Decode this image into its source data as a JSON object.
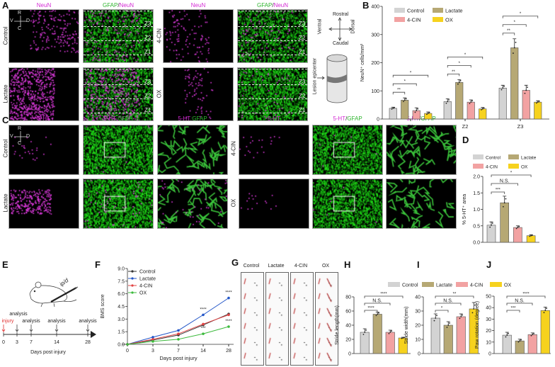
{
  "panel_labels": [
    "A",
    "B",
    "C",
    "D",
    "E",
    "F",
    "G",
    "H",
    "I",
    "J"
  ],
  "colors": {
    "control": "#d3d3d3",
    "lactate": "#b6a874",
    "cin": "#f2a2a2",
    "ox": "#f6d21e",
    "neun": "#d42ad4",
    "gfap": "#2fb52f",
    "line_control": "#333333",
    "line_lactate": "#2356c8",
    "line_cin": "#e24444",
    "line_ox": "#3cba3c"
  },
  "panel_a": {
    "col_titles": [
      {
        "parts": [
          {
            "t": "NeuN",
            "c": "mag"
          }
        ]
      },
      {
        "parts": [
          {
            "t": "GFAP",
            "c": "grn"
          },
          {
            "t": "/",
            "c": ""
          },
          {
            "t": "NeuN",
            "c": "mag"
          }
        ]
      },
      {
        "parts": [
          {
            "t": "NeuN",
            "c": "mag"
          }
        ]
      },
      {
        "parts": [
          {
            "t": "GFAP",
            "c": "grn"
          },
          {
            "t": "/",
            "c": ""
          },
          {
            "t": "NeuN",
            "c": "mag"
          }
        ]
      }
    ],
    "row_labels": [
      "Control",
      "Lactate",
      "4-CIN",
      "OX"
    ],
    "zones": [
      "Z3",
      "Z2",
      "Z1"
    ],
    "orientation": {
      "r": "R",
      "c": "C",
      "v": "V",
      "d": "D"
    },
    "diagram": {
      "rostral": "Rostral",
      "caudal": "Caudal",
      "ventral": "Ventral",
      "dorsal": "Dorsal",
      "lesion": "Lesion epicenter"
    }
  },
  "panel_c": {
    "col_titles": [
      {
        "parts": [
          {
            "t": "5-HT",
            "c": "mag"
          }
        ]
      },
      {
        "parts": [
          {
            "t": "5-HT",
            "c": "mag"
          },
          {
            "t": "/",
            "c": ""
          },
          {
            "t": "GFAP",
            "c": "grn"
          }
        ]
      },
      {
        "parts": [
          {
            "t": "5-HT",
            "c": "mag"
          },
          {
            "t": "/",
            "c": ""
          },
          {
            "t": "GFAP",
            "c": "grn"
          }
        ]
      },
      {
        "parts": [
          {
            "t": "5-HT",
            "c": "mag"
          }
        ]
      },
      {
        "parts": [
          {
            "t": "5-HT",
            "c": "mag"
          },
          {
            "t": "/",
            "c": ""
          },
          {
            "t": "GFAP",
            "c": "grn"
          }
        ]
      },
      {
        "parts": [
          {
            "t": "5-HT",
            "c": "mag"
          },
          {
            "t": "/",
            "c": ""
          },
          {
            "t": "GFAP",
            "c": "grn"
          }
        ]
      }
    ],
    "row_labels": [
      "Control",
      "Lactate",
      "4-CIN",
      "OX"
    ],
    "orientation": {
      "r": "R",
      "c": "C",
      "v": "V",
      "d": "D"
    }
  },
  "panel_e": {
    "injury": "injury",
    "analysis": "analysis",
    "route": "ip/d",
    "days": [
      "0",
      "3",
      "7",
      "14",
      "28"
    ],
    "xlabel": "Days post injury"
  },
  "panel_g": {
    "labels": [
      "Control",
      "Lactate",
      "4-CIN",
      "OX"
    ]
  },
  "legend_groups": [
    "Control",
    "Lactate",
    "4-CIN",
    "OX"
  ],
  "chart_data": [
    {
      "id": "B",
      "type": "bar",
      "ylabel": "NeuN⁺ cells/mm²",
      "ylim": [
        0,
        400
      ],
      "yticks": [
        0,
        100,
        200,
        300,
        400
      ],
      "categories": [
        "Z1",
        "Z2",
        "Z3"
      ],
      "series": [
        {
          "name": "Control",
          "values": [
            38,
            62,
            110
          ],
          "err": [
            4,
            10,
            10
          ]
        },
        {
          "name": "Lactate",
          "values": [
            67,
            130,
            253
          ],
          "err": [
            8,
            10,
            32
          ]
        },
        {
          "name": "4-CIN",
          "values": [
            30,
            60,
            102
          ],
          "err": [
            10,
            8,
            18
          ]
        },
        {
          "name": "OX",
          "values": [
            20,
            36,
            60
          ],
          "err": [
            5,
            5,
            5
          ]
        }
      ],
      "significance": [
        [
          [
            0,
            1,
            "**"
          ],
          [
            0,
            2,
            "*"
          ],
          [
            0,
            3,
            "*"
          ]
        ],
        [
          [
            0,
            1,
            "**"
          ],
          [
            0,
            2,
            "*"
          ],
          [
            0,
            3,
            "*"
          ]
        ],
        [
          [
            0,
            1,
            "**"
          ],
          [
            0,
            2,
            "*"
          ],
          [
            0,
            3,
            "*"
          ]
        ]
      ],
      "legend": "top-left"
    },
    {
      "id": "D",
      "type": "bar",
      "ylabel": "% 5-HT⁺ area",
      "ylim": [
        0,
        2.0
      ],
      "yticks": [
        "0.0",
        "0.5",
        "1.0",
        "1.5",
        "2.0"
      ],
      "categories": [
        "Control",
        "Lactate",
        "4-CIN",
        "OX"
      ],
      "values": [
        0.52,
        1.2,
        0.45,
        0.2
      ],
      "err": [
        0.1,
        0.2,
        0.05,
        0.03
      ],
      "significance": [
        [
          0,
          1,
          "***"
        ],
        [
          0,
          2,
          "N.S."
        ],
        [
          0,
          3,
          "*"
        ]
      ],
      "legend": "top"
    },
    {
      "id": "F",
      "type": "line",
      "ylabel": "BMS score",
      "xlabel": "Days post injury",
      "ylim": [
        0,
        9
      ],
      "yticks": [
        "0.0",
        "1.5",
        "3.0",
        "4.5",
        "6.0",
        "7.5",
        "9.0"
      ],
      "x": [
        "0",
        "3",
        "7",
        "14",
        "28"
      ],
      "series": [
        {
          "name": "Control",
          "values": [
            0,
            0.5,
            1.1,
            2.3,
            3.6
          ]
        },
        {
          "name": "Lactate",
          "values": [
            0,
            0.85,
            1.65,
            3.5,
            5.5
          ]
        },
        {
          "name": "4-CIN",
          "values": [
            0,
            0.6,
            1.25,
            2.4,
            3.5
          ]
        },
        {
          "name": "OX",
          "values": [
            0,
            0.35,
            0.6,
            1.25,
            2.1
          ]
        }
      ],
      "annotations": [
        {
          "series": 1,
          "x": 3,
          "label": "****"
        },
        {
          "series": 1,
          "x": 4,
          "label": "****"
        },
        {
          "series": 3,
          "x": 3,
          "label": "***"
        },
        {
          "series": 3,
          "x": 4,
          "label": "****"
        }
      ],
      "legend": "top-left"
    },
    {
      "id": "H",
      "type": "bar",
      "ylabel": "Stride length(mm)",
      "ylim": [
        0,
        80
      ],
      "yticks": [
        0,
        20,
        40,
        60,
        80
      ],
      "categories": [
        "Control",
        "Lactate",
        "4-CIN",
        "OX"
      ],
      "values": [
        30,
        55.5,
        30,
        22
      ],
      "err": [
        5,
        3,
        3,
        1
      ],
      "significance": [
        [
          0,
          1,
          "****"
        ],
        [
          0,
          2,
          "N.S."
        ],
        [
          0,
          3,
          "****"
        ]
      ]
    },
    {
      "id": "I",
      "type": "bar",
      "ylabel": "Stride width(mm)",
      "ylim": [
        0,
        40
      ],
      "yticks": [
        0,
        10,
        20,
        30,
        40
      ],
      "categories": [
        "Control",
        "Lactate",
        "4-CIN",
        "OX"
      ],
      "values": [
        25,
        20,
        26,
        31.5
      ],
      "err": [
        3,
        2.5,
        2,
        4.5
      ],
      "significance": [
        [
          0,
          1,
          "*"
        ],
        [
          0,
          2,
          "N.S."
        ],
        [
          0,
          3,
          "**"
        ]
      ]
    },
    {
      "id": "J",
      "type": "bar",
      "ylabel": "Paw rotation (degree)",
      "ylim": [
        0,
        50
      ],
      "yticks": [
        0,
        10,
        20,
        30,
        40,
        50
      ],
      "categories": [
        "Control",
        "Lactate",
        "4-CIN",
        "OX"
      ],
      "values": [
        16,
        11,
        16.5,
        37.5
      ],
      "err": [
        2.5,
        1.5,
        1.5,
        3
      ],
      "significance": [
        [
          0,
          1,
          "***"
        ],
        [
          0,
          2,
          "N.S."
        ],
        [
          0,
          3,
          "****"
        ]
      ]
    }
  ]
}
